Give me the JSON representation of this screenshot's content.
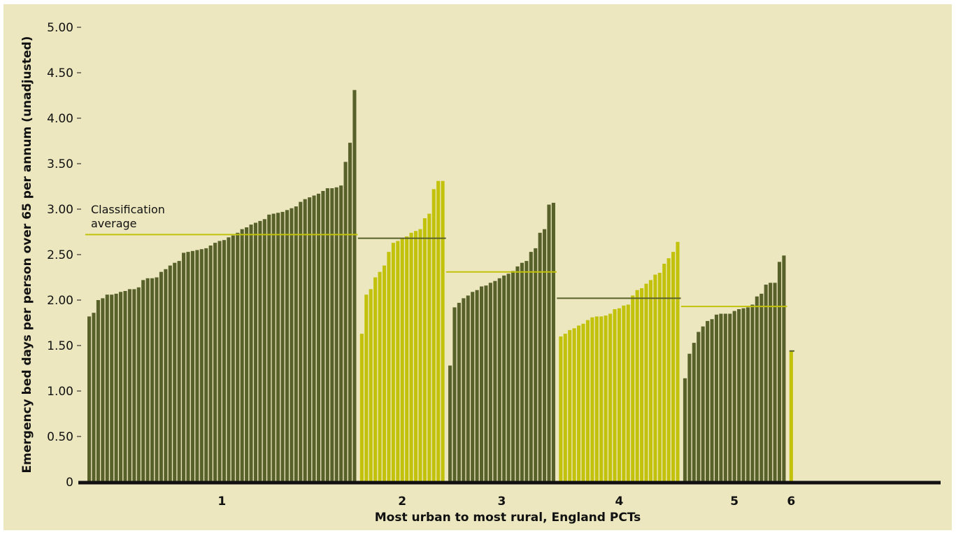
{
  "chart_data": {
    "type": "bar",
    "xlabel": "Most urban to most rural, England PCTs",
    "ylabel": "Emergency bed days per person over 65 per annum (unadjusted)",
    "ylim": [
      0,
      5.0
    ],
    "yticks": [
      "0",
      "0.50",
      "1.00",
      "1.50",
      "2.00",
      "2.50",
      "3.00",
      "3.50",
      "4.00",
      "4.50",
      "5.00"
    ],
    "grid": false,
    "annotation": [
      "Classification",
      "average"
    ],
    "colors": {
      "dark": "#59612b",
      "light": "#c2c20c",
      "background": "#ece7bf",
      "axis": "#111111"
    },
    "groups": [
      {
        "name": "1",
        "color": "dark",
        "average": 2.72,
        "average_color": "light",
        "values": [
          1.82,
          1.86,
          2.0,
          2.02,
          2.06,
          2.06,
          2.07,
          2.09,
          2.1,
          2.12,
          2.12,
          2.14,
          2.22,
          2.24,
          2.24,
          2.25,
          2.31,
          2.34,
          2.38,
          2.41,
          2.43,
          2.52,
          2.53,
          2.54,
          2.55,
          2.56,
          2.57,
          2.6,
          2.63,
          2.65,
          2.66,
          2.69,
          2.71,
          2.74,
          2.78,
          2.8,
          2.83,
          2.85,
          2.87,
          2.89,
          2.94,
          2.95,
          2.96,
          2.97,
          2.99,
          3.01,
          3.03,
          3.08,
          3.11,
          3.13,
          3.15,
          3.17,
          3.2,
          3.23,
          3.23,
          3.24,
          3.26,
          3.52,
          3.73,
          4.31
        ]
      },
      {
        "name": "2",
        "color": "light",
        "average": 2.68,
        "average_color": "dark",
        "values": [
          1.63,
          2.06,
          2.12,
          2.25,
          2.31,
          2.38,
          2.53,
          2.63,
          2.65,
          2.68,
          2.7,
          2.74,
          2.76,
          2.78,
          2.9,
          2.95,
          3.22,
          3.31,
          3.31
        ]
      },
      {
        "name": "3",
        "color": "dark",
        "average": 2.31,
        "average_color": "light",
        "values": [
          1.28,
          1.92,
          1.97,
          2.02,
          2.05,
          2.09,
          2.11,
          2.15,
          2.16,
          2.19,
          2.21,
          2.24,
          2.27,
          2.29,
          2.32,
          2.37,
          2.41,
          2.43,
          2.53,
          2.57,
          2.74,
          2.78,
          3.05,
          3.07
        ]
      },
      {
        "name": "4",
        "color": "light",
        "average": 2.02,
        "average_color": "dark",
        "values": [
          1.6,
          1.63,
          1.67,
          1.69,
          1.72,
          1.74,
          1.78,
          1.81,
          1.82,
          1.82,
          1.83,
          1.85,
          1.9,
          1.91,
          1.94,
          1.95,
          2.05,
          2.11,
          2.13,
          2.18,
          2.22,
          2.28,
          2.3,
          2.4,
          2.46,
          2.53,
          2.64
        ]
      },
      {
        "name": "5",
        "color": "dark",
        "average": 1.93,
        "average_color": "light",
        "values": [
          1.14,
          1.41,
          1.53,
          1.65,
          1.71,
          1.77,
          1.79,
          1.84,
          1.85,
          1.85,
          1.85,
          1.88,
          1.9,
          1.91,
          1.92,
          1.95,
          2.04,
          2.07,
          2.17,
          2.19,
          2.19,
          2.42,
          2.49
        ]
      },
      {
        "name": "6",
        "color": "light",
        "average": 1.44,
        "average_color": "dark",
        "values": [
          1.44
        ]
      }
    ]
  }
}
